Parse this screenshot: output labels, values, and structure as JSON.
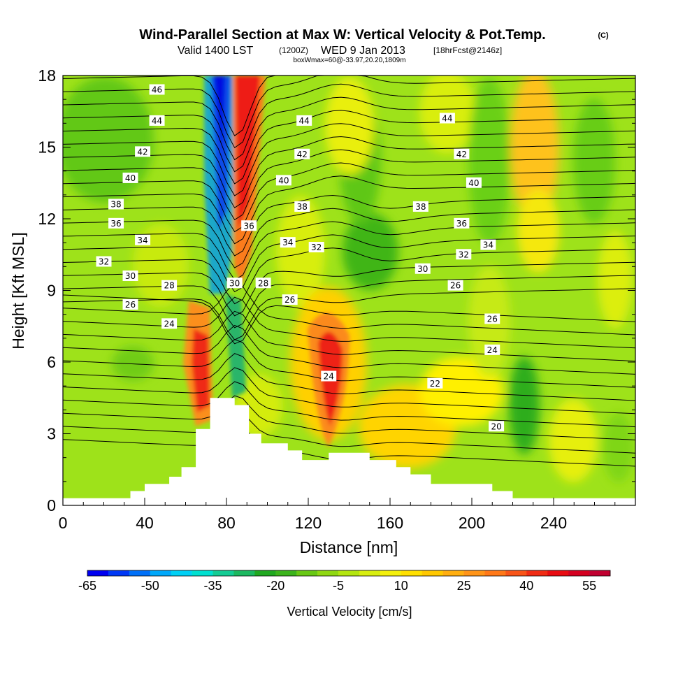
{
  "chart_data": {
    "type": "heatmap",
    "title": "Wind-Parallel Section at Max W: Vertical Velocity & Pot.Temp.",
    "title_mark": "(C)",
    "subtitle": {
      "valid": "Valid 1400 LST",
      "utc": "(1200Z)",
      "date": "WED 9 Jan 2013",
      "forecast": "[18hrFcst@2146z]"
    },
    "box_note": "boxWmax=60@-33.97,20.20,1809m",
    "xlabel": "Distance [nm]",
    "ylabel": "Height [Kft MSL]",
    "xlim": [
      0,
      280
    ],
    "ylim": [
      0,
      18
    ],
    "x_ticks": [
      "0",
      "40",
      "80",
      "120",
      "160",
      "200",
      "240"
    ],
    "y_ticks": [
      "0",
      "3",
      "6",
      "9",
      "12",
      "15",
      "18"
    ],
    "colorbar": {
      "label": "Vertical Velocity [cm/s]",
      "range": [
        -65,
        60
      ],
      "step": 5,
      "tick_labels": [
        "-65",
        "-50",
        "-35",
        "-20",
        "-5",
        "10",
        "25",
        "40",
        "55"
      ]
    },
    "terrain": [
      [
        0,
        0.3
      ],
      [
        33,
        0.3
      ],
      [
        33,
        0.6
      ],
      [
        40,
        0.6
      ],
      [
        40,
        0.9
      ],
      [
        52,
        0.9
      ],
      [
        52,
        1.2
      ],
      [
        58,
        1.2
      ],
      [
        58,
        1.6
      ],
      [
        65,
        1.6
      ],
      [
        65,
        3.2
      ],
      [
        72,
        3.2
      ],
      [
        72,
        4.5
      ],
      [
        84,
        4.5
      ],
      [
        84,
        4.2
      ],
      [
        91,
        4.2
      ],
      [
        91,
        3
      ],
      [
        97,
        3
      ],
      [
        97,
        2.6
      ],
      [
        110,
        2.6
      ],
      [
        110,
        2.3
      ],
      [
        117,
        2.3
      ],
      [
        117,
        1.9
      ],
      [
        130,
        1.9
      ],
      [
        130,
        2.2
      ],
      [
        150,
        2.2
      ],
      [
        150,
        1.9
      ],
      [
        163,
        1.9
      ],
      [
        163,
        1.6
      ],
      [
        170,
        1.6
      ],
      [
        170,
        1.3
      ],
      [
        180,
        1.3
      ],
      [
        180,
        0.9
      ],
      [
        210,
        0.9
      ],
      [
        210,
        0.6
      ],
      [
        220,
        0.6
      ],
      [
        220,
        0.3
      ],
      [
        280,
        0.3
      ]
    ],
    "velocity_cells": [
      {
        "x": 78,
        "y": 15,
        "value": -65
      },
      {
        "x": 86,
        "y": 14,
        "value": 55
      },
      {
        "x": 68,
        "y": 6,
        "value": 45
      },
      {
        "x": 128,
        "y": 5.5,
        "value": 55
      },
      {
        "x": 160,
        "y": 3,
        "value": 20
      },
      {
        "x": 140,
        "y": 10,
        "value": -15
      },
      {
        "x": 230,
        "y": 15,
        "value": 25
      },
      {
        "x": 225,
        "y": 5,
        "value": -20
      },
      {
        "x": 25,
        "y": 15,
        "value": -10
      }
    ],
    "isentropes": [
      {
        "theta": "20",
        "label_x": 212,
        "label_y": 3.3
      },
      {
        "theta": "22",
        "label_x": 182,
        "label_y": 5.1
      },
      {
        "theta": "24",
        "label_x": 130,
        "label_y": 5.4
      },
      {
        "theta": "24",
        "label_x": 52,
        "label_y": 7.6
      },
      {
        "theta": "24",
        "label_x": 210,
        "label_y": 6.5
      },
      {
        "theta": "26",
        "label_x": 33,
        "label_y": 8.4
      },
      {
        "theta": "26",
        "label_x": 111,
        "label_y": 8.6
      },
      {
        "theta": "26",
        "label_x": 210,
        "label_y": 7.8
      },
      {
        "theta": "26",
        "label_x": 192,
        "label_y": 9.2
      },
      {
        "theta": "28",
        "label_x": 52,
        "label_y": 9.2
      },
      {
        "theta": "28",
        "label_x": 98,
        "label_y": 9.3
      },
      {
        "theta": "30",
        "label_x": 33,
        "label_y": 9.6
      },
      {
        "theta": "30",
        "label_x": 84,
        "label_y": 9.3
      },
      {
        "theta": "30",
        "label_x": 176,
        "label_y": 9.9
      },
      {
        "theta": "32",
        "label_x": 20,
        "label_y": 10.2
      },
      {
        "theta": "32",
        "label_x": 124,
        "label_y": 10.8
      },
      {
        "theta": "32",
        "label_x": 196,
        "label_y": 10.5
      },
      {
        "theta": "34",
        "label_x": 39,
        "label_y": 11.1
      },
      {
        "theta": "34",
        "label_x": 110,
        "label_y": 11.0
      },
      {
        "theta": "34",
        "label_x": 208,
        "label_y": 10.9
      },
      {
        "theta": "36",
        "label_x": 26,
        "label_y": 11.8
      },
      {
        "theta": "36",
        "label_x": 91,
        "label_y": 11.7
      },
      {
        "theta": "36",
        "label_x": 195,
        "label_y": 11.8
      },
      {
        "theta": "38",
        "label_x": 26,
        "label_y": 12.6
      },
      {
        "theta": "38",
        "label_x": 117,
        "label_y": 12.5
      },
      {
        "theta": "38",
        "label_x": 175,
        "label_y": 12.5
      },
      {
        "theta": "40",
        "label_x": 33,
        "label_y": 13.7
      },
      {
        "theta": "40",
        "label_x": 108,
        "label_y": 13.6
      },
      {
        "theta": "40",
        "label_x": 201,
        "label_y": 13.5
      },
      {
        "theta": "42",
        "label_x": 39,
        "label_y": 14.8
      },
      {
        "theta": "42",
        "label_x": 117,
        "label_y": 14.7
      },
      {
        "theta": "42",
        "label_x": 195,
        "label_y": 14.7
      },
      {
        "theta": "44",
        "label_x": 46,
        "label_y": 16.1
      },
      {
        "theta": "44",
        "label_x": 118,
        "label_y": 16.1
      },
      {
        "theta": "44",
        "label_x": 188,
        "label_y": 16.2
      },
      {
        "theta": "46",
        "label_x": 46,
        "label_y": 17.4
      }
    ]
  }
}
